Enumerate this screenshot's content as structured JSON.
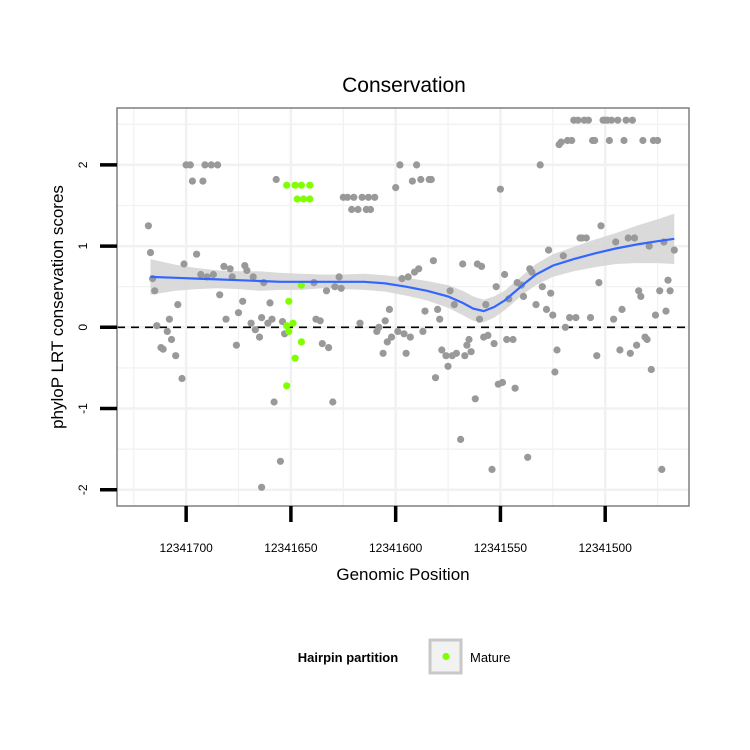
{
  "chart_data": {
    "type": "scatter",
    "title": "Conservation",
    "xlabel": "Genomic Position",
    "ylabel": "phyloP LRT conservation scores",
    "x_reversed": true,
    "xlim": [
      12341733,
      12341460
    ],
    "ylim": [
      -2.2,
      2.7
    ],
    "x_ticks": [
      12341700,
      12341650,
      12341600,
      12341550,
      12341500
    ],
    "x_tick_labels": [
      "12341700",
      "12341650",
      "12341600",
      "12341550",
      "12341500"
    ],
    "y_ticks": [
      -2,
      -1,
      0,
      1,
      2
    ],
    "y_tick_labels": [
      "-2",
      "-1",
      "0",
      "1",
      "2"
    ],
    "reference_line": {
      "y": 0,
      "style": "dashed",
      "color": "#000000"
    },
    "grid": true,
    "legend": {
      "title": "Hairpin partition",
      "entries": [
        "Mature"
      ],
      "position": "bottom"
    },
    "colors": {
      "background": "#ffffff",
      "panel_border": "#7f7f7f",
      "grid": "#f1f1f1",
      "other_points": "#999999",
      "mature_points": "#80ff00",
      "smooth_line": "#3366ff",
      "ribbon": "#d3d3d3"
    },
    "series": [
      {
        "name": "Mature",
        "color": "#80ff00",
        "points": [
          [
            12341652,
            1.75
          ],
          [
            12341648,
            1.75
          ],
          [
            12341645,
            1.75
          ],
          [
            12341641,
            1.75
          ],
          [
            12341647,
            1.58
          ],
          [
            12341644,
            1.58
          ],
          [
            12341641,
            1.58
          ],
          [
            12341645,
            0.52
          ],
          [
            12341651,
            0.32
          ],
          [
            12341652,
            0.02
          ],
          [
            12341649,
            0.05
          ],
          [
            12341651,
            -0.05
          ],
          [
            12341645,
            -0.18
          ],
          [
            12341648,
            -0.38
          ],
          [
            12341652,
            -0.72
          ]
        ]
      },
      {
        "color": "#999999",
        "points": [
          [
            12341718,
            1.25
          ],
          [
            12341717,
            0.92
          ],
          [
            12341716,
            0.6
          ],
          [
            12341715,
            0.45
          ],
          [
            12341714,
            0.02
          ],
          [
            12341712,
            -0.25
          ],
          [
            12341711,
            -0.27
          ],
          [
            12341709,
            -0.05
          ],
          [
            12341708,
            0.1
          ],
          [
            12341707,
            -0.15
          ],
          [
            12341705,
            -0.35
          ],
          [
            12341704,
            0.28
          ],
          [
            12341702,
            -0.63
          ],
          [
            12341701,
            0.78
          ],
          [
            12341700,
            2.0
          ],
          [
            12341698,
            2.0
          ],
          [
            12341697,
            1.8
          ],
          [
            12341695,
            0.9
          ],
          [
            12341693,
            0.65
          ],
          [
            12341692,
            1.8
          ],
          [
            12341691,
            2.0
          ],
          [
            12341690,
            0.62
          ],
          [
            12341688,
            2.0
          ],
          [
            12341687,
            0.65
          ],
          [
            12341685,
            2.0
          ],
          [
            12341684,
            0.4
          ],
          [
            12341682,
            0.75
          ],
          [
            12341681,
            0.1
          ],
          [
            12341679,
            0.72
          ],
          [
            12341678,
            0.62
          ],
          [
            12341676,
            -0.22
          ],
          [
            12341675,
            0.18
          ],
          [
            12341673,
            0.32
          ],
          [
            12341672,
            0.76
          ],
          [
            12341671,
            0.7
          ],
          [
            12341669,
            0.05
          ],
          [
            12341668,
            0.62
          ],
          [
            12341667,
            -0.03
          ],
          [
            12341665,
            -0.12
          ],
          [
            12341664,
            0.12
          ],
          [
            12341663,
            0.55
          ],
          [
            12341661,
            0.05
          ],
          [
            12341660,
            0.3
          ],
          [
            12341659,
            0.1
          ],
          [
            12341658,
            -0.92
          ],
          [
            12341657,
            1.82
          ],
          [
            12341655,
            -1.65
          ],
          [
            12341654,
            0.07
          ],
          [
            12341653,
            -0.08
          ],
          [
            12341664,
            -1.97
          ],
          [
            12341639,
            0.55
          ],
          [
            12341638,
            0.1
          ],
          [
            12341636,
            0.08
          ],
          [
            12341635,
            -0.2
          ],
          [
            12341633,
            0.45
          ],
          [
            12341632,
            -0.25
          ],
          [
            12341630,
            -0.92
          ],
          [
            12341629,
            0.5
          ],
          [
            12341627,
            0.62
          ],
          [
            12341626,
            0.48
          ],
          [
            12341625,
            1.6
          ],
          [
            12341623,
            1.6
          ],
          [
            12341621,
            1.45
          ],
          [
            12341620,
            1.6
          ],
          [
            12341618,
            1.45
          ],
          [
            12341617,
            0.05
          ],
          [
            12341616,
            1.6
          ],
          [
            12341614,
            1.45
          ],
          [
            12341613,
            1.6
          ],
          [
            12341612,
            1.45
          ],
          [
            12341610,
            1.6
          ],
          [
            12341609,
            -0.05
          ],
          [
            12341608,
            0.0
          ],
          [
            12341606,
            -0.32
          ],
          [
            12341605,
            0.08
          ],
          [
            12341604,
            -0.18
          ],
          [
            12341603,
            0.22
          ],
          [
            12341602,
            -0.12
          ],
          [
            12341600,
            1.72
          ],
          [
            12341599,
            -0.05
          ],
          [
            12341598,
            2.0
          ],
          [
            12341597,
            0.6
          ],
          [
            12341596,
            -0.08
          ],
          [
            12341595,
            -0.32
          ],
          [
            12341594,
            0.62
          ],
          [
            12341593,
            -0.12
          ],
          [
            12341592,
            1.8
          ],
          [
            12341591,
            0.68
          ],
          [
            12341590,
            2.0
          ],
          [
            12341589,
            0.72
          ],
          [
            12341588,
            1.82
          ],
          [
            12341587,
            -0.05
          ],
          [
            12341586,
            0.2
          ],
          [
            12341584,
            1.82
          ],
          [
            12341583,
            1.82
          ],
          [
            12341582,
            0.82
          ],
          [
            12341581,
            -0.62
          ],
          [
            12341580,
            0.22
          ],
          [
            12341579,
            0.1
          ],
          [
            12341578,
            -0.28
          ],
          [
            12341576,
            -0.35
          ],
          [
            12341575,
            -0.48
          ],
          [
            12341574,
            0.45
          ],
          [
            12341573,
            -0.35
          ],
          [
            12341572,
            0.28
          ],
          [
            12341571,
            -0.32
          ],
          [
            12341569,
            -1.38
          ],
          [
            12341568,
            0.78
          ],
          [
            12341567,
            -0.35
          ],
          [
            12341566,
            -0.22
          ],
          [
            12341565,
            -0.15
          ],
          [
            12341564,
            -0.3
          ],
          [
            12341562,
            -0.88
          ],
          [
            12341561,
            0.78
          ],
          [
            12341560,
            0.1
          ],
          [
            12341559,
            0.75
          ],
          [
            12341558,
            -0.12
          ],
          [
            12341557,
            0.28
          ],
          [
            12341556,
            -0.1
          ],
          [
            12341554,
            -1.75
          ],
          [
            12341553,
            -0.2
          ],
          [
            12341552,
            0.5
          ],
          [
            12341551,
            -0.7
          ],
          [
            12341550,
            1.7
          ],
          [
            12341549,
            -0.68
          ],
          [
            12341548,
            0.65
          ],
          [
            12341547,
            -0.15
          ],
          [
            12341546,
            0.35
          ],
          [
            12341544,
            -0.15
          ],
          [
            12341543,
            -0.75
          ],
          [
            12341542,
            0.55
          ],
          [
            12341540,
            0.52
          ],
          [
            12341539,
            0.38
          ],
          [
            12341537,
            -1.6
          ],
          [
            12341536,
            0.72
          ],
          [
            12341535,
            0.68
          ],
          [
            12341533,
            0.28
          ],
          [
            12341531,
            2.0
          ],
          [
            12341530,
            0.5
          ],
          [
            12341528,
            0.22
          ],
          [
            12341527,
            0.95
          ],
          [
            12341526,
            0.42
          ],
          [
            12341525,
            0.15
          ],
          [
            12341524,
            -0.55
          ],
          [
            12341523,
            -0.28
          ],
          [
            12341522,
            2.25
          ],
          [
            12341521,
            2.28
          ],
          [
            12341520,
            0.88
          ],
          [
            12341519,
            0.0
          ],
          [
            12341518,
            2.3
          ],
          [
            12341517,
            0.12
          ],
          [
            12341516,
            2.3
          ],
          [
            12341515,
            2.55
          ],
          [
            12341514,
            0.12
          ],
          [
            12341513,
            2.55
          ],
          [
            12341512,
            1.1
          ],
          [
            12341511,
            1.1
          ],
          [
            12341510,
            2.55
          ],
          [
            12341509,
            1.1
          ],
          [
            12341508,
            2.55
          ],
          [
            12341507,
            0.12
          ],
          [
            12341506,
            2.3
          ],
          [
            12341505,
            2.3
          ],
          [
            12341504,
            -0.35
          ],
          [
            12341503,
            0.55
          ],
          [
            12341502,
            1.25
          ],
          [
            12341501,
            2.55
          ],
          [
            12341500,
            2.55
          ],
          [
            12341499,
            2.55
          ],
          [
            12341498,
            2.3
          ],
          [
            12341497,
            2.55
          ],
          [
            12341496,
            0.1
          ],
          [
            12341495,
            1.05
          ],
          [
            12341494,
            2.55
          ],
          [
            12341493,
            -0.28
          ],
          [
            12341492,
            0.22
          ],
          [
            12341491,
            2.3
          ],
          [
            12341490,
            2.55
          ],
          [
            12341489,
            1.1
          ],
          [
            12341488,
            -0.32
          ],
          [
            12341487,
            2.55
          ],
          [
            12341486,
            1.1
          ],
          [
            12341485,
            -0.22
          ],
          [
            12341484,
            0.45
          ],
          [
            12341483,
            0.38
          ],
          [
            12341482,
            2.3
          ],
          [
            12341481,
            -0.12
          ],
          [
            12341480,
            -0.15
          ],
          [
            12341479,
            1.0
          ],
          [
            12341478,
            -0.52
          ],
          [
            12341477,
            2.3
          ],
          [
            12341476,
            0.15
          ],
          [
            12341475,
            2.3
          ],
          [
            12341474,
            0.45
          ],
          [
            12341473,
            -1.75
          ],
          [
            12341472,
            1.05
          ],
          [
            12341471,
            0.2
          ],
          [
            12341470,
            0.58
          ],
          [
            12341469,
            0.45
          ],
          [
            12341467,
            0.95
          ]
        ]
      }
    ],
    "smooth": {
      "x": [
        12341717,
        12341705,
        12341695,
        12341685,
        12341675,
        12341665,
        12341655,
        12341645,
        12341635,
        12341625,
        12341615,
        12341605,
        12341595,
        12341585,
        12341575,
        12341568,
        12341563,
        12341558,
        12341553,
        12341548,
        12341543,
        12341538,
        12341533,
        12341525,
        12341515,
        12341505,
        12341495,
        12341485,
        12341475,
        12341467
      ],
      "y": [
        0.62,
        0.61,
        0.6,
        0.59,
        0.58,
        0.57,
        0.56,
        0.56,
        0.56,
        0.56,
        0.56,
        0.54,
        0.5,
        0.45,
        0.38,
        0.3,
        0.23,
        0.2,
        0.25,
        0.33,
        0.44,
        0.55,
        0.65,
        0.76,
        0.84,
        0.91,
        0.97,
        1.02,
        1.06,
        1.09
      ],
      "lower": [
        0.4,
        0.45,
        0.47,
        0.48,
        0.47,
        0.45,
        0.46,
        0.46,
        0.48,
        0.47,
        0.46,
        0.44,
        0.39,
        0.33,
        0.24,
        0.15,
        0.08,
        0.06,
        0.12,
        0.21,
        0.32,
        0.43,
        0.52,
        0.62,
        0.69,
        0.74,
        0.78,
        0.79,
        0.79,
        0.78
      ],
      "upper": [
        0.84,
        0.77,
        0.73,
        0.7,
        0.69,
        0.69,
        0.67,
        0.66,
        0.65,
        0.65,
        0.66,
        0.64,
        0.61,
        0.57,
        0.52,
        0.45,
        0.38,
        0.34,
        0.38,
        0.45,
        0.56,
        0.67,
        0.78,
        0.9,
        0.99,
        1.08,
        1.16,
        1.25,
        1.33,
        1.4
      ]
    }
  }
}
